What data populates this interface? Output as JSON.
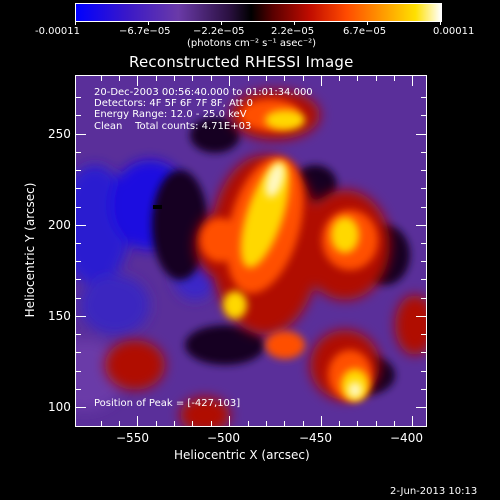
{
  "colorbar": {
    "ticks": [
      "-0.00011",
      "−6.7e−05",
      "−2.2e−05",
      "2.2e−05",
      "6.7e−05",
      "0.00011"
    ],
    "units": "(photons cm⁻² s⁻¹ asec⁻²)",
    "colors": [
      "#0000ff",
      "#4b1fb8",
      "#6a3aa8",
      "#000000",
      "#8a0000",
      "#d01000",
      "#ff5a00",
      "#ffa000",
      "#ffe000",
      "#ffffff"
    ]
  },
  "title": "Reconstructed RHESSI Image",
  "info": {
    "line1": "20-Dec-2003 00:56:40.000 to 01:01:34.000",
    "line2": "Detectors: 4F 5F 6F 7F 8F, Att 0",
    "line3": "Energy Range: 12.0 - 25.0 keV",
    "line4_method": "Clean",
    "line4_counts": "Total counts: 4.71E+03",
    "peak": "Position of Peak = [-427,103]"
  },
  "axes": {
    "xlabel": "Heliocentric X (arcsec)",
    "ylabel": "Heliocentric Y (arcsec)",
    "xticks": [
      "−550",
      "−500",
      "−450",
      "−400"
    ],
    "yticks": [
      "250",
      "200",
      "150",
      "100"
    ],
    "xlim": [
      -582,
      -392
    ],
    "ylim": [
      90,
      282
    ]
  },
  "footer": {
    "date": "2-Jun-2013 10:13"
  }
}
